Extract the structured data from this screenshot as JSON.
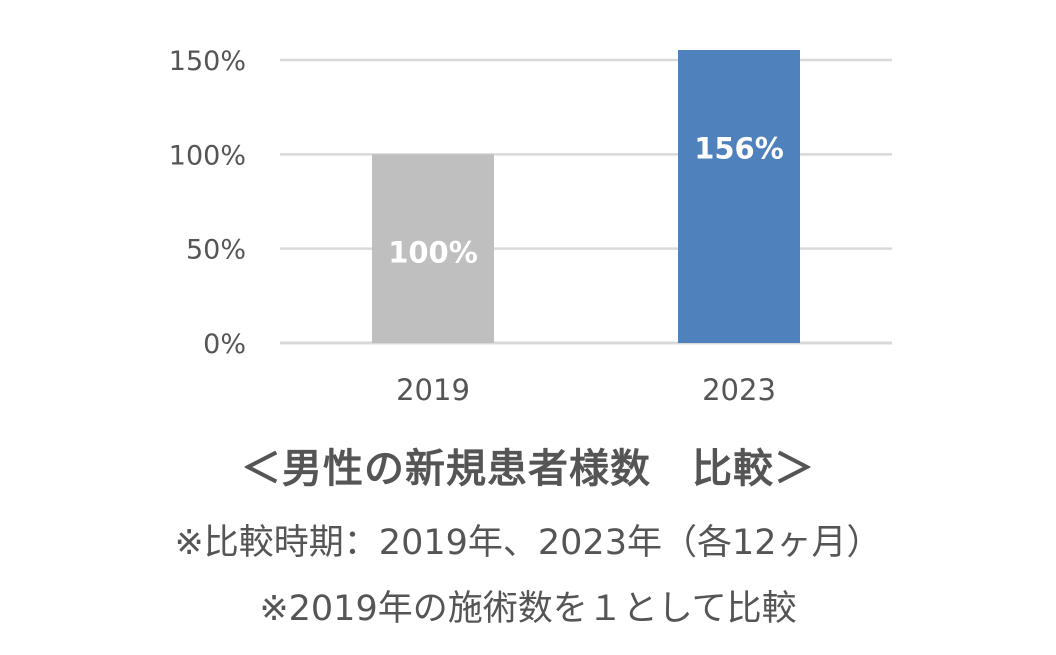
{
  "chart_data": {
    "type": "bar",
    "title": "＜男性の新規患者様数　比較＞",
    "notes": [
      "※比較時期：2019年、2023年（各12ヶ月）",
      "※2019年の施術数を１として比較"
    ],
    "categories": [
      "2019",
      "2023"
    ],
    "values": [
      100,
      156
    ],
    "data_labels": [
      "100%",
      "156%"
    ],
    "bar_colors": [
      "#bfbfbf",
      "#4f81bd"
    ],
    "yticks": [
      "0%",
      "50%",
      "100%",
      "150%"
    ],
    "ytick_values": [
      0,
      50,
      100,
      150
    ],
    "ylim": [
      0,
      150
    ],
    "xlabel": "",
    "ylabel": "",
    "grid": true,
    "grid_color": "#d9d9d9",
    "text_color": "#555555",
    "clip_at_ylim": false
  }
}
